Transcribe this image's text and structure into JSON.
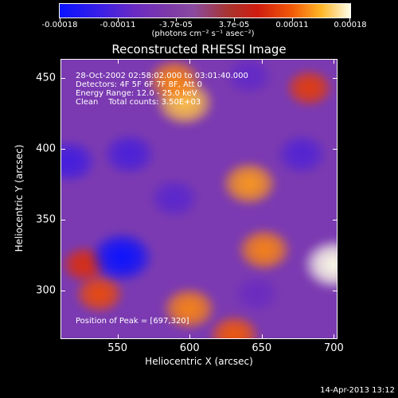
{
  "chart_data": {
    "type": "heatmap",
    "title": "Reconstructed RHESSI Image",
    "xlabel": "Heliocentric X (arcsec)",
    "ylabel": "Heliocentric Y (arcsec)",
    "xlim": [
      511,
      702
    ],
    "ylim": [
      266,
      463
    ],
    "x_ticks": [
      550,
      600,
      650,
      700
    ],
    "y_ticks": [
      300,
      350,
      400,
      450
    ],
    "colorbar": {
      "min": -0.00018,
      "max": 0.00018,
      "tick_labels": [
        "-0.00018",
        "-0.00011",
        "-3.7e-05",
        "3.7e-05",
        "0.00011",
        "0.00018"
      ],
      "unit_label": "(photons cm⁻² s⁻¹ asec⁻²)",
      "colors": [
        "#0a12ff",
        "#6b2bc2",
        "#8a4aa0",
        "#d01c10",
        "#f25a08",
        "#ffffe8"
      ]
    },
    "info_lines": [
      "28-Oct-2002 02:58:02.000 to 03:01:40.000",
      "Detectors: 4F 5F 6F 7F 8F, Att 0",
      "Energy Range: 12.0 - 25.0 keV",
      "Clean    Total counts: 3.50E+03"
    ],
    "peak_label": "Position of Peak = [697,320]",
    "features": [
      {
        "x": 597,
        "y": 430,
        "value": 0.00015
      },
      {
        "x": 590,
        "y": 445,
        "value": 0.00012
      },
      {
        "x": 640,
        "y": 375,
        "value": 0.00013
      },
      {
        "x": 650,
        "y": 330,
        "value": 0.00012
      },
      {
        "x": 697,
        "y": 320,
        "value": 0.00018
      },
      {
        "x": 600,
        "y": 290,
        "value": 0.00012
      },
      {
        "x": 630,
        "y": 272,
        "value": 0.0001
      },
      {
        "x": 540,
        "y": 300,
        "value": 9e-05
      },
      {
        "x": 530,
        "y": 320,
        "value": 7e-05
      },
      {
        "x": 680,
        "y": 440,
        "value": 8e-05
      },
      {
        "x": 555,
        "y": 325,
        "value": -0.00018
      },
      {
        "x": 520,
        "y": 390,
        "value": -0.00012
      },
      {
        "x": 560,
        "y": 395,
        "value": -0.00011
      },
      {
        "x": 590,
        "y": 365,
        "value": -9e-05
      },
      {
        "x": 675,
        "y": 395,
        "value": -0.0001
      },
      {
        "x": 645,
        "y": 300,
        "value": -7e-05
      },
      {
        "x": 640,
        "y": 448,
        "value": -8e-05
      }
    ]
  },
  "footer_date": "14-Apr-2013 13:12"
}
